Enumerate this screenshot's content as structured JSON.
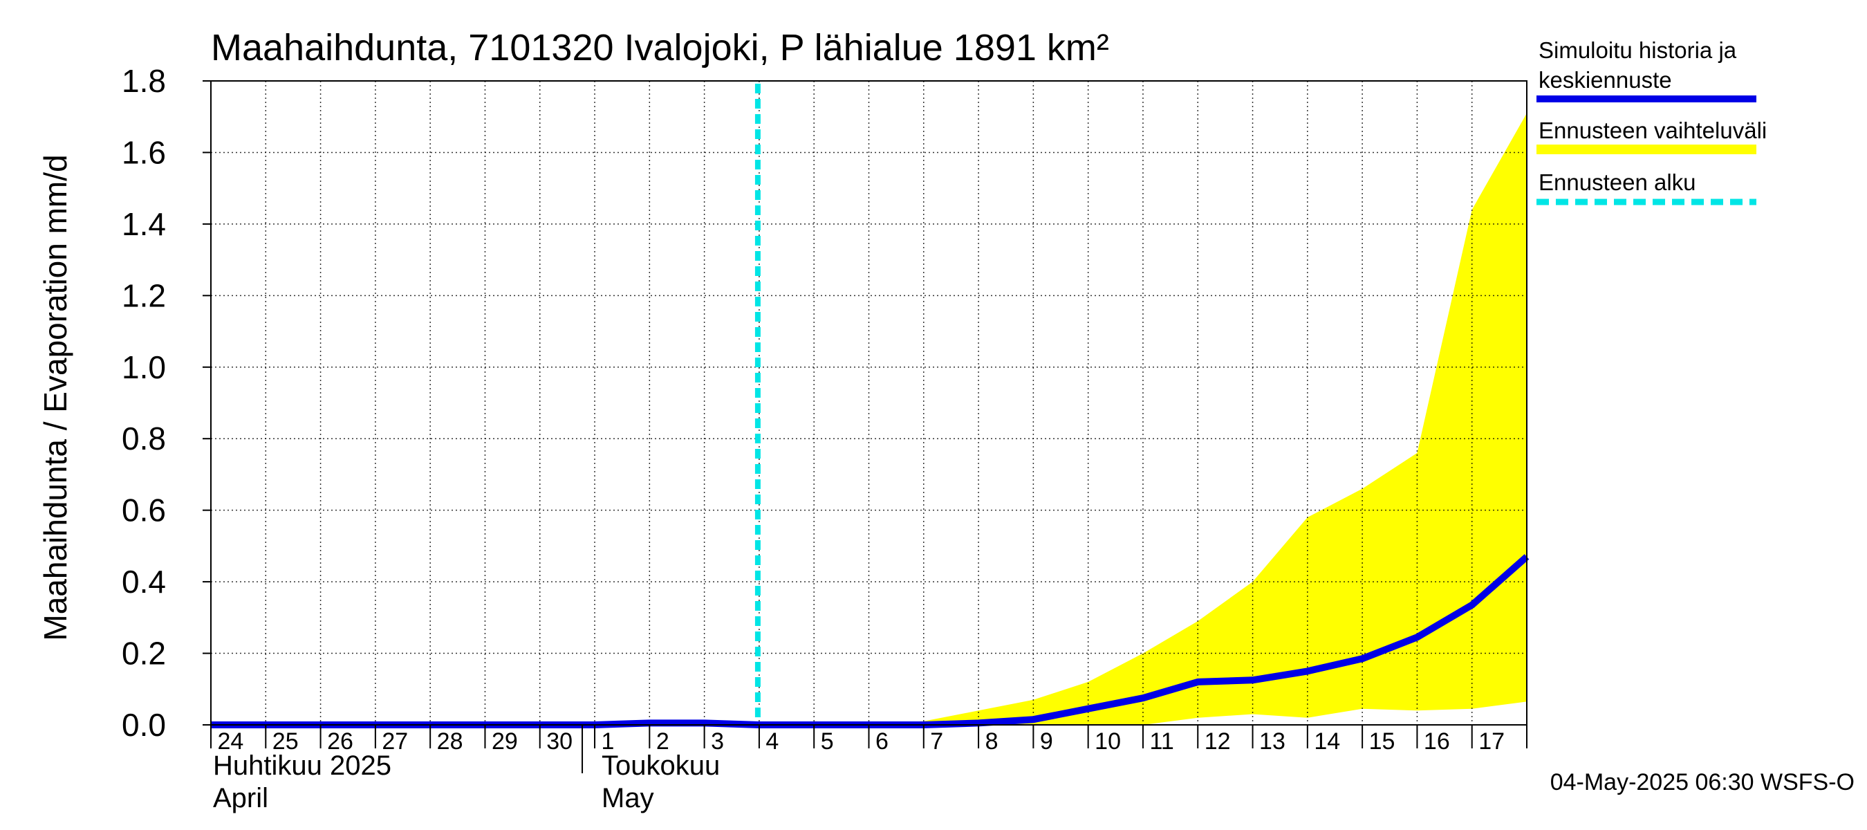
{
  "chart_data": {
    "type": "area",
    "title": "Maahaihdunta, 7101320 Ivalojoki, P lähialue 1891 km²",
    "ylabel": "Maahaihdunta / Evaporation   mm/d",
    "ylim": [
      0,
      1.8
    ],
    "yticks": [
      "0.0",
      "0.2",
      "0.4",
      "0.6",
      "0.8",
      "1.0",
      "1.2",
      "1.4",
      "1.6",
      "1.8"
    ],
    "x_day_labels": [
      "24",
      "25",
      "26",
      "27",
      "28",
      "29",
      "30",
      "1",
      "2",
      "3",
      "4",
      "5",
      "6",
      "7",
      "8",
      "9",
      "10",
      "11",
      "12",
      "13",
      "14",
      "15",
      "16",
      "17"
    ],
    "months": [
      {
        "line1": "Huhtikuu  2025",
        "line2": "April",
        "start_index": 0
      },
      {
        "line1": "Toukokuu",
        "line2": "May",
        "start_index": 7
      }
    ],
    "forecast_start_index": 10,
    "x": [
      0,
      1,
      2,
      3,
      4,
      5,
      6,
      7,
      8,
      9,
      10,
      11,
      12,
      13,
      14,
      15,
      16,
      17,
      18,
      19,
      20,
      21,
      22,
      23,
      24
    ],
    "series": [
      {
        "name": "Simuloitu historia ja keskiennuste",
        "color": "#0000e6",
        "values": [
          0.0,
          0.0,
          0.0,
          0.0,
          0.0,
          0.0,
          0.0,
          0.0,
          0.005,
          0.005,
          0.0,
          0.0,
          0.0,
          0.0,
          0.005,
          0.015,
          0.045,
          0.075,
          0.12,
          0.125,
          0.15,
          0.185,
          0.245,
          0.335,
          0.47
        ]
      }
    ],
    "band": {
      "name": "Ennusteen vaihteluväli",
      "color": "#ffff00",
      "x": [
        10,
        11,
        12,
        13,
        14,
        15,
        16,
        17,
        18,
        19,
        20,
        21,
        22,
        23,
        24
      ],
      "upper": [
        0.0,
        0.01,
        0.005,
        0.01,
        0.04,
        0.07,
        0.12,
        0.2,
        0.29,
        0.4,
        0.58,
        0.66,
        0.76,
        1.44,
        1.71
      ],
      "lower": [
        0.0,
        0.0,
        0.0,
        0.0,
        0.0,
        0.0,
        0.0,
        0.0,
        0.02,
        0.03,
        0.02,
        0.045,
        0.04,
        0.045,
        0.065
      ]
    },
    "legend": [
      {
        "label_line1": "Simuloitu historia ja",
        "label_line2": "keskiennuste",
        "color": "#0000e6",
        "style": "solid"
      },
      {
        "label_line1": "Ennusteen vaihteluväli",
        "label_line2": "",
        "color": "#ffff00",
        "style": "band"
      },
      {
        "label_line1": "Ennusteen alku",
        "label_line2": "",
        "color": "#00e5e5",
        "style": "dashed"
      }
    ],
    "footer": "04-May-2025 06:30 WSFS-O",
    "grid": true
  }
}
